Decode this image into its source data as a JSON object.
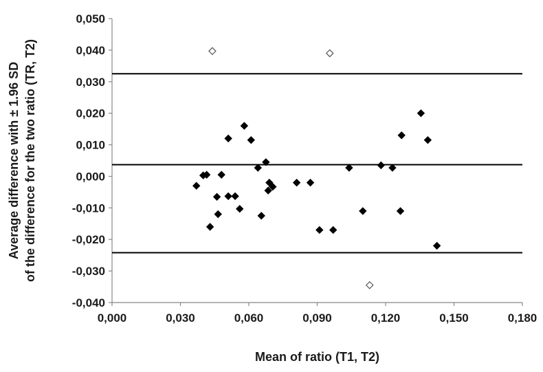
{
  "chart_data": {
    "type": "scatter",
    "title": "",
    "xlabel": "Mean of ratio (T1, T2)",
    "ylabel_lines": [
      "Average difference with ± 1.96 SD",
      "of the difference for the two ratio (TR, T2)"
    ],
    "xlim": [
      0.0,
      0.18
    ],
    "ylim": [
      -0.04,
      0.05
    ],
    "x_ticks": [
      0.0,
      0.03,
      0.06,
      0.09,
      0.12,
      0.15,
      0.18
    ],
    "x_tick_labels": [
      "0,000",
      "0,030",
      "0,060",
      "0,090",
      "0,120",
      "0,150",
      "0,180"
    ],
    "y_ticks": [
      0.05,
      0.04,
      0.03,
      0.02,
      0.01,
      0.0,
      -0.01,
      -0.02,
      -0.03,
      -0.04
    ],
    "y_tick_labels": [
      "0,050",
      "0,040",
      "0,030",
      "0,020",
      "0,010",
      "0,000",
      "-0,010",
      "-0,020",
      "-0,030",
      "-0,040"
    ],
    "grid": false,
    "reference_lines": [
      {
        "y": 0.0325
      },
      {
        "y": 0.0037
      },
      {
        "y": -0.0242
      }
    ],
    "series": [
      {
        "marker": "filled-diamond",
        "color": "#000000",
        "points": [
          [
            0.037,
            -0.003
          ],
          [
            0.04,
            0.0003
          ],
          [
            0.0415,
            0.0005
          ],
          [
            0.043,
            -0.016
          ],
          [
            0.046,
            -0.0065
          ],
          [
            0.0465,
            -0.012
          ],
          [
            0.048,
            0.0005
          ],
          [
            0.051,
            -0.0063
          ],
          [
            0.051,
            0.012
          ],
          [
            0.054,
            -0.0063
          ],
          [
            0.056,
            -0.0103
          ],
          [
            0.058,
            0.016
          ],
          [
            0.061,
            0.0115
          ],
          [
            0.064,
            0.0027
          ],
          [
            0.0655,
            -0.0125
          ],
          [
            0.0675,
            0.0045
          ],
          [
            0.0685,
            -0.0045
          ],
          [
            0.069,
            -0.002
          ],
          [
            0.0705,
            -0.0033
          ],
          [
            0.081,
            -0.002
          ],
          [
            0.087,
            -0.002
          ],
          [
            0.091,
            -0.017
          ],
          [
            0.097,
            -0.017
          ],
          [
            0.104,
            0.0027
          ],
          [
            0.11,
            -0.011
          ],
          [
            0.118,
            0.0035
          ],
          [
            0.123,
            0.0027
          ],
          [
            0.1265,
            -0.011
          ],
          [
            0.127,
            0.013
          ],
          [
            0.1355,
            0.02
          ],
          [
            0.1385,
            0.0115
          ],
          [
            0.1425,
            -0.022
          ]
        ]
      },
      {
        "marker": "open-diamond",
        "color": "#555555",
        "points": [
          [
            0.044,
            0.0397
          ],
          [
            0.0955,
            0.039
          ],
          [
            0.113,
            -0.0345
          ]
        ]
      }
    ]
  }
}
